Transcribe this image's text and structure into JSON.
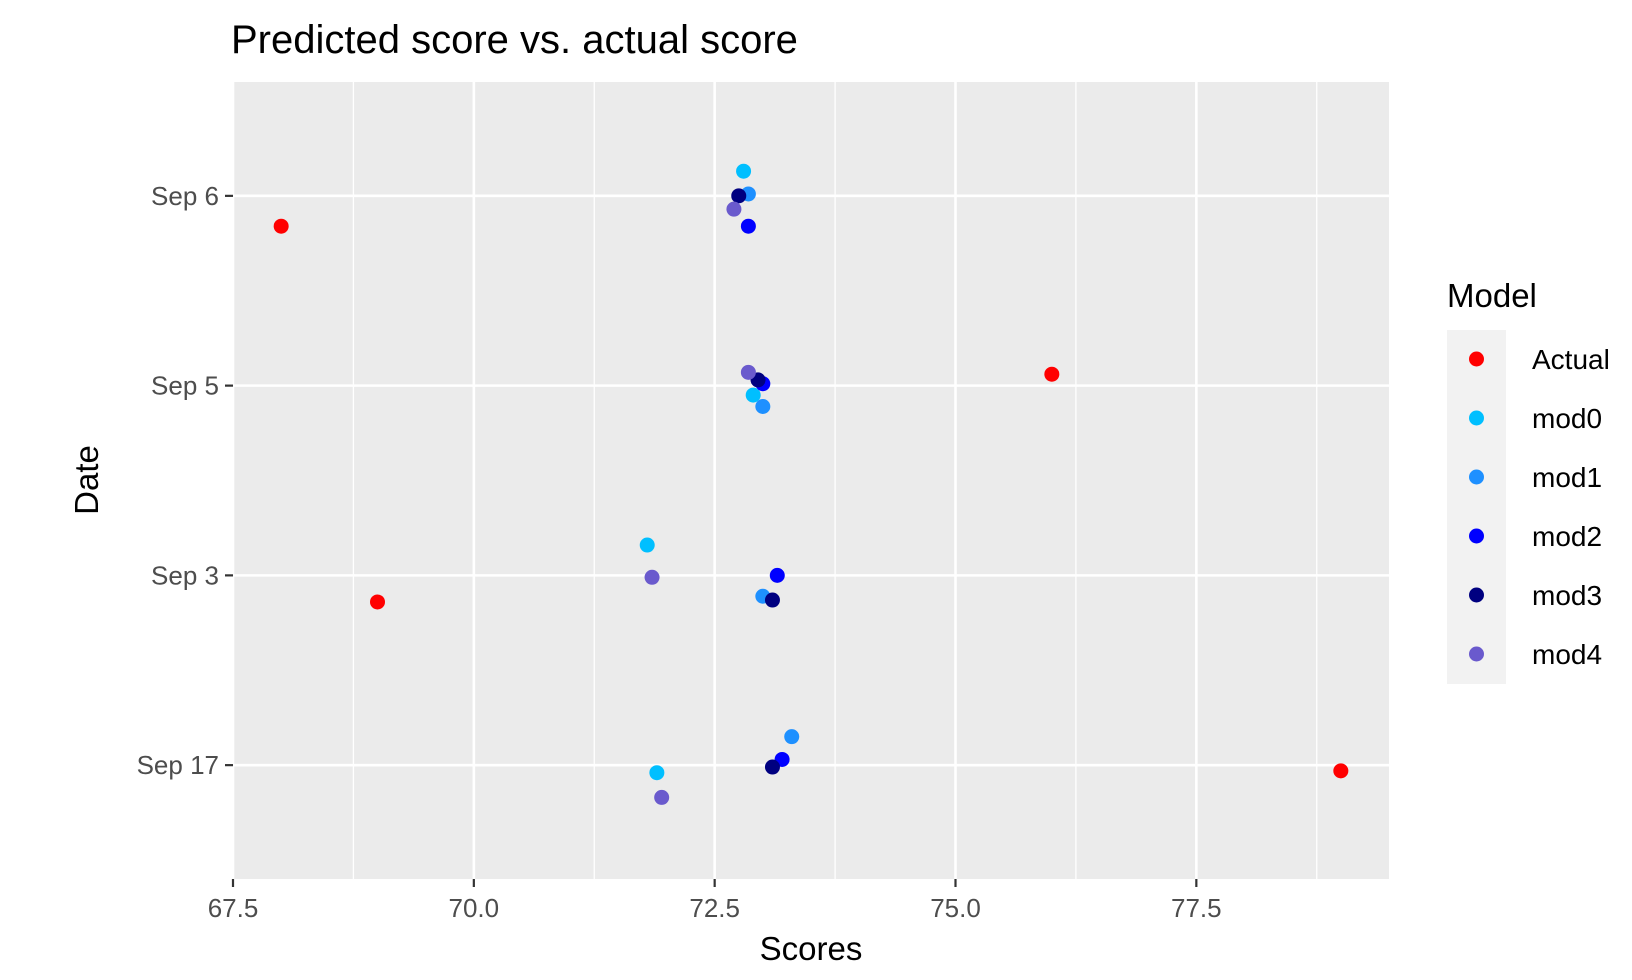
{
  "chart_data": {
    "type": "scatter",
    "title": "Predicted score vs. actual score",
    "xlabel": "Scores",
    "ylabel": "Date",
    "xlim": [
      67.5,
      79.5
    ],
    "x_ticks": [
      67.5,
      70.0,
      72.5,
      75.0,
      77.5
    ],
    "x_tick_labels": [
      "67.5",
      "70.0",
      "72.5",
      "75.0",
      "77.5"
    ],
    "categories": [
      "Sep 17",
      "Sep 3",
      "Sep 5",
      "Sep 6"
    ],
    "grid": true,
    "legend": {
      "title": "Model",
      "placement": "right"
    },
    "series": [
      {
        "name": "Actual",
        "color": "#ff0000",
        "points": [
          {
            "date": "Sep 6",
            "score": 68.0,
            "jitter": -0.16
          },
          {
            "date": "Sep 5",
            "score": 76.0,
            "jitter": 0.06
          },
          {
            "date": "Sep 3",
            "score": 69.0,
            "jitter": -0.14
          },
          {
            "date": "Sep 17",
            "score": 79.0,
            "jitter": -0.03
          }
        ]
      },
      {
        "name": "mod0",
        "color": "#00bfff",
        "points": [
          {
            "date": "Sep 6",
            "score": 72.8,
            "jitter": 0.13
          },
          {
            "date": "Sep 5",
            "score": 72.9,
            "jitter": -0.05
          },
          {
            "date": "Sep 3",
            "score": 71.8,
            "jitter": 0.16
          },
          {
            "date": "Sep 17",
            "score": 71.9,
            "jitter": -0.04
          }
        ]
      },
      {
        "name": "mod1",
        "color": "#1e90ff",
        "points": [
          {
            "date": "Sep 6",
            "score": 72.85,
            "jitter": 0.01
          },
          {
            "date": "Sep 5",
            "score": 73.0,
            "jitter": -0.11
          },
          {
            "date": "Sep 3",
            "score": 73.0,
            "jitter": -0.11
          },
          {
            "date": "Sep 17",
            "score": 73.3,
            "jitter": 0.15
          }
        ]
      },
      {
        "name": "mod2",
        "color": "#0000ff",
        "points": [
          {
            "date": "Sep 6",
            "score": 72.85,
            "jitter": -0.16
          },
          {
            "date": "Sep 5",
            "score": 73.0,
            "jitter": 0.01
          },
          {
            "date": "Sep 3",
            "score": 73.15,
            "jitter": 0.0
          },
          {
            "date": "Sep 17",
            "score": 73.2,
            "jitter": 0.03
          }
        ]
      },
      {
        "name": "mod3",
        "color": "#000080",
        "points": [
          {
            "date": "Sep 6",
            "score": 72.75,
            "jitter": 0.0
          },
          {
            "date": "Sep 5",
            "score": 72.95,
            "jitter": 0.03
          },
          {
            "date": "Sep 3",
            "score": 73.1,
            "jitter": -0.13
          },
          {
            "date": "Sep 17",
            "score": 73.1,
            "jitter": -0.01
          }
        ]
      },
      {
        "name": "mod4",
        "color": "#6a5acd",
        "points": [
          {
            "date": "Sep 6",
            "score": 72.7,
            "jitter": -0.07
          },
          {
            "date": "Sep 5",
            "score": 72.85,
            "jitter": 0.07
          },
          {
            "date": "Sep 3",
            "score": 71.85,
            "jitter": -0.01
          },
          {
            "date": "Sep 17",
            "score": 71.95,
            "jitter": -0.17
          }
        ]
      }
    ]
  }
}
